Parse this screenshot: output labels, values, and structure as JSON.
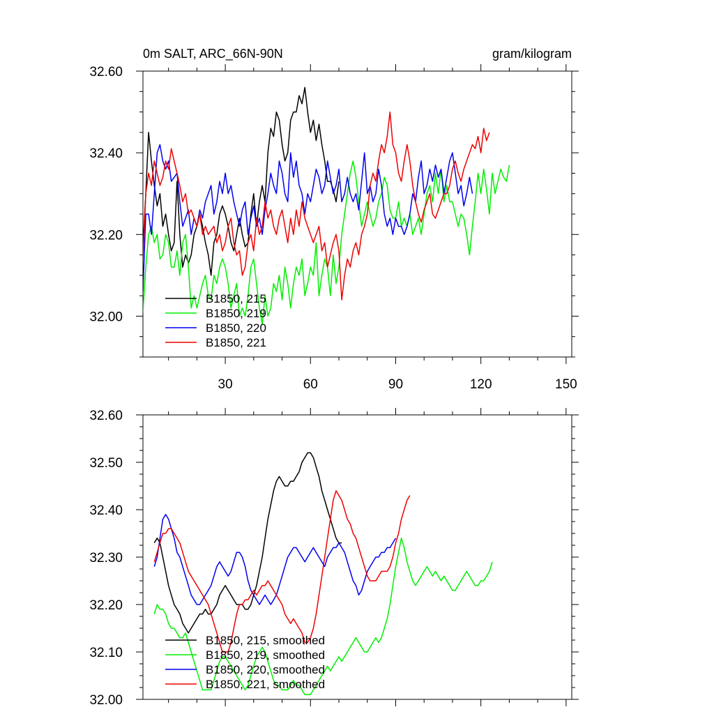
{
  "figure": {
    "title_left": "0m SALT, ARC_66N-90N",
    "title_right": "gram/kilogram"
  },
  "chart_data": [
    {
      "type": "line",
      "title": "0m SALT, ARC_66N-90N",
      "units": "gram/kilogram",
      "xlim": [
        1,
        152
      ],
      "ylim": [
        31.9,
        32.6
      ],
      "xticks": [
        30,
        60,
        90,
        120,
        150
      ],
      "xtick_labels": [
        "30",
        "60",
        "90",
        "120",
        "150"
      ],
      "yticks": [
        32.0,
        32.2,
        32.4,
        32.6
      ],
      "ytick_labels": [
        "32.00",
        "32.20",
        "32.40",
        "32.60"
      ],
      "legend": [
        "B1850, 215",
        "B1850, 219",
        "B1850, 220",
        "B1850, 221"
      ],
      "series": [
        {
          "name": "B1850, 215",
          "color": "#000000",
          "x0": 1,
          "values": [
            32.17,
            32.3,
            32.45,
            32.38,
            32.32,
            32.27,
            32.3,
            32.22,
            32.25,
            32.2,
            32.16,
            32.18,
            32.33,
            32.2,
            32.12,
            32.15,
            32.13,
            32.15,
            32.2,
            32.22,
            32.25,
            32.22,
            32.18,
            32.15,
            32.1,
            32.18,
            32.2,
            32.25,
            32.27,
            32.25,
            32.22,
            32.18,
            32.16,
            32.2,
            32.24,
            32.2,
            32.17,
            32.18,
            32.25,
            32.3,
            32.22,
            32.28,
            32.32,
            32.28,
            32.4,
            32.46,
            32.44,
            32.5,
            32.48,
            32.42,
            32.38,
            32.4,
            32.48,
            32.5,
            32.5,
            32.54,
            32.52,
            32.56,
            32.5,
            32.45,
            32.48,
            32.43,
            32.47,
            32.42,
            32.38,
            32.33,
            32.33,
            32.31,
            32.28,
            32.33
          ]
        },
        {
          "name": "B1850, 219",
          "color": "#00ee00",
          "x0": 1,
          "values": [
            32.01,
            32.12,
            32.2,
            32.22,
            32.18,
            32.2,
            32.14,
            32.15,
            32.2,
            32.18,
            32.12,
            32.12,
            32.16,
            32.1,
            32.18,
            32.2,
            32.12,
            32.02,
            32.05,
            32.02,
            32.05,
            32.08,
            32.1,
            32.05,
            32.04,
            32.1,
            32.08,
            32.12,
            32.14,
            32.12,
            32.08,
            32.02,
            32.05,
            32.08,
            32.0,
            32.02,
            32.0,
            32.05,
            32.12,
            32.14,
            32.08,
            32.02,
            31.98,
            32.05,
            32.0,
            32.02,
            32.08,
            32.06,
            32.1,
            32.04,
            32.12,
            32.08,
            32.02,
            32.08,
            32.12,
            32.1,
            32.14,
            32.05,
            32.08,
            32.12,
            32.1,
            32.18,
            32.05,
            32.1,
            32.14,
            32.12,
            32.05,
            32.15,
            32.08,
            32.12,
            32.2,
            32.25,
            32.3,
            32.35,
            32.38,
            32.34,
            32.28,
            32.22,
            32.25,
            32.28,
            32.25,
            32.22,
            32.24,
            32.28,
            32.3,
            32.34,
            32.32,
            32.26,
            32.24,
            32.24,
            32.28,
            32.22,
            32.24,
            32.22,
            32.25,
            32.2,
            32.22,
            32.24,
            32.2,
            32.25,
            32.3,
            32.32,
            32.28,
            32.35,
            32.3,
            32.36,
            32.28,
            32.32,
            32.28,
            32.28,
            32.25,
            32.22,
            32.25,
            32.24,
            32.2,
            32.15,
            32.22,
            32.28,
            32.35,
            32.3,
            32.36,
            32.31,
            32.25,
            32.35,
            32.3,
            32.33,
            32.36,
            32.34,
            32.33,
            32.37
          ]
        },
        {
          "name": "B1850, 220",
          "color": "#0000ee",
          "x0": 1,
          "values": [
            32.06,
            32.25,
            32.25,
            32.2,
            32.3,
            32.4,
            32.42,
            32.38,
            32.36,
            32.38,
            32.33,
            32.34,
            32.35,
            32.28,
            32.22,
            32.24,
            32.26,
            32.2,
            32.24,
            32.22,
            32.26,
            32.24,
            32.28,
            32.3,
            32.32,
            32.25,
            32.28,
            32.33,
            32.3,
            32.35,
            32.3,
            32.32,
            32.28,
            32.25,
            32.22,
            32.26,
            32.28,
            32.2,
            32.24,
            32.27,
            32.22,
            32.24,
            32.2,
            32.26,
            32.3,
            32.35,
            32.32,
            32.3,
            32.38,
            32.35,
            32.3,
            32.28,
            32.4,
            32.34,
            32.38,
            32.32,
            32.3,
            32.25,
            32.3,
            32.28,
            32.32,
            32.36,
            32.34,
            32.3,
            32.32,
            32.38,
            32.34,
            32.3,
            32.32,
            32.36,
            32.28,
            32.3,
            32.34,
            32.3,
            32.28,
            32.3,
            32.26,
            32.33,
            32.4,
            32.3,
            32.32,
            32.28,
            32.3,
            32.36,
            32.32,
            32.25,
            32.22,
            32.24,
            32.2,
            32.24,
            32.22,
            32.22,
            32.2,
            32.22,
            32.25,
            32.3,
            32.28,
            32.34,
            32.38,
            32.3,
            32.32,
            32.36,
            32.33,
            32.37,
            32.34,
            32.36,
            32.3,
            32.34,
            32.38,
            32.4,
            32.35,
            32.3,
            32.32,
            32.27,
            32.3,
            32.34,
            32.3
          ]
        },
        {
          "name": "B1850, 221",
          "color": "#ee0000",
          "x0": 1,
          "values": [
            32.14,
            32.3,
            32.35,
            32.32,
            32.38,
            32.35,
            32.32,
            32.34,
            32.38,
            32.36,
            32.41,
            32.38,
            32.35,
            32.32,
            32.28,
            32.3,
            32.25,
            32.26,
            32.24,
            32.22,
            32.25,
            32.2,
            32.22,
            32.2,
            32.21,
            32.22,
            32.18,
            32.2,
            32.16,
            32.18,
            32.22,
            32.24,
            32.18,
            32.15,
            32.16,
            32.1,
            32.12,
            32.18,
            32.2,
            32.16,
            32.24,
            32.2,
            32.22,
            32.28,
            32.24,
            32.26,
            32.22,
            32.2,
            32.24,
            32.26,
            32.22,
            32.18,
            32.24,
            32.2,
            32.26,
            32.22,
            32.28,
            32.24,
            32.22,
            32.2,
            32.18,
            32.2,
            32.22,
            32.16,
            32.18,
            32.12,
            32.15,
            32.18,
            32.2,
            32.16,
            32.04,
            32.1,
            32.14,
            32.12,
            32.16,
            32.18,
            32.15,
            32.2,
            32.22,
            32.25,
            32.32,
            32.35,
            32.33,
            32.38,
            32.42,
            32.4,
            32.44,
            32.5,
            32.42,
            32.4,
            32.35,
            32.33,
            32.38,
            32.42,
            32.38,
            32.32,
            32.28,
            32.25,
            32.23,
            32.26,
            32.28,
            32.3,
            32.25,
            32.24,
            32.26,
            32.28,
            32.3,
            32.3,
            32.32,
            32.36,
            32.38,
            32.35,
            32.33,
            32.36,
            32.38,
            32.4,
            32.42,
            32.41,
            32.44,
            32.4,
            32.46,
            32.43,
            32.45
          ]
        }
      ]
    },
    {
      "type": "line",
      "title": "",
      "xlim": [
        1,
        152
      ],
      "ylim": [
        32.0,
        32.6
      ],
      "xticks": [
        30,
        60,
        90,
        120,
        150
      ],
      "yticks": [
        32.0,
        32.1,
        32.2,
        32.3,
        32.4,
        32.5,
        32.6
      ],
      "ytick_labels": [
        "32.00",
        "32.10",
        "32.20",
        "32.30",
        "32.40",
        "32.50",
        "32.60"
      ],
      "legend": [
        "B1850, 215, smoothed",
        "B1850, 219, smoothed",
        "B1850, 220, smoothed",
        "B1850, 221, smoothed"
      ],
      "series": [
        {
          "name": "B1850, 215, smoothed",
          "color": "#000000",
          "x0": 5,
          "values": [
            32.33,
            32.34,
            32.33,
            32.3,
            32.27,
            32.24,
            32.22,
            32.2,
            32.19,
            32.18,
            32.16,
            32.15,
            32.14,
            32.15,
            32.16,
            32.17,
            32.18,
            32.18,
            32.19,
            32.18,
            32.18,
            32.19,
            32.2,
            32.22,
            32.23,
            32.24,
            32.23,
            32.22,
            32.21,
            32.2,
            32.2,
            32.2,
            32.19,
            32.19,
            32.2,
            32.22,
            32.24,
            32.27,
            32.3,
            32.34,
            32.38,
            32.41,
            32.44,
            32.46,
            32.47,
            32.46,
            32.45,
            32.45,
            32.46,
            32.46,
            32.47,
            32.48,
            32.5,
            32.51,
            32.52,
            32.52,
            32.51,
            32.49,
            32.47,
            32.44,
            32.42,
            32.4,
            32.38,
            32.36,
            32.34,
            32.33,
            32.33
          ]
        },
        {
          "name": "B1850, 219, smoothed",
          "color": "#00ee00",
          "x0": 5,
          "values": [
            32.18,
            32.2,
            32.19,
            32.19,
            32.18,
            32.16,
            32.15,
            32.15,
            32.14,
            32.13,
            32.13,
            32.14,
            32.12,
            32.1,
            32.08,
            32.06,
            32.04,
            32.02,
            32.02,
            32.02,
            32.02,
            32.04,
            32.06,
            32.08,
            32.09,
            32.09,
            32.08,
            32.07,
            32.06,
            32.05,
            32.04,
            32.03,
            32.02,
            32.03,
            32.05,
            32.07,
            32.09,
            32.1,
            32.11,
            32.1,
            32.08,
            32.06,
            32.04,
            32.03,
            32.03,
            32.02,
            32.02,
            32.02,
            32.03,
            32.04,
            32.03,
            32.03,
            32.02,
            32.01,
            32.01,
            32.01,
            32.02,
            32.03,
            32.04,
            32.05,
            32.06,
            32.07,
            32.06,
            32.07,
            32.08,
            32.09,
            32.08,
            32.09,
            32.1,
            32.11,
            32.12,
            32.13,
            32.12,
            32.11,
            32.1,
            32.1,
            32.11,
            32.12,
            32.13,
            32.12,
            32.13,
            32.15,
            32.17,
            32.2,
            32.24,
            32.28,
            32.31,
            32.34,
            32.32,
            32.29,
            32.27,
            32.25,
            32.24,
            32.25,
            32.26,
            32.27,
            32.28,
            32.27,
            32.26,
            32.27,
            32.26,
            32.25,
            32.26,
            32.25,
            32.24,
            32.23,
            32.23,
            32.24,
            32.25,
            32.26,
            32.27,
            32.26,
            32.25,
            32.24,
            32.24,
            32.25,
            32.25,
            32.26,
            32.27,
            32.29
          ]
        },
        {
          "name": "B1850, 220, smoothed",
          "color": "#0000ee",
          "x0": 5,
          "values": [
            32.28,
            32.3,
            32.34,
            32.38,
            32.39,
            32.38,
            32.36,
            32.34,
            32.31,
            32.3,
            32.28,
            32.26,
            32.24,
            32.22,
            32.21,
            32.2,
            32.2,
            32.21,
            32.22,
            32.23,
            32.24,
            32.26,
            32.28,
            32.29,
            32.28,
            32.27,
            32.26,
            32.27,
            32.29,
            32.31,
            32.31,
            32.3,
            32.28,
            32.25,
            32.23,
            32.22,
            32.21,
            32.2,
            32.21,
            32.22,
            32.21,
            32.2,
            32.21,
            32.22,
            32.24,
            32.26,
            32.28,
            32.3,
            32.31,
            32.32,
            32.32,
            32.31,
            32.3,
            32.29,
            32.3,
            32.31,
            32.32,
            32.31,
            32.3,
            32.29,
            32.28,
            32.3,
            32.31,
            32.32,
            32.32,
            32.33,
            32.32,
            32.31,
            32.29,
            32.27,
            32.25,
            32.24,
            32.22,
            32.23,
            32.25,
            32.27,
            32.28,
            32.29,
            32.3,
            32.3,
            32.31,
            32.31,
            32.32,
            32.32,
            32.33,
            32.34
          ]
        },
        {
          "name": "B1850, 221, smoothed",
          "color": "#ee0000",
          "x0": 5,
          "values": [
            32.29,
            32.31,
            32.33,
            32.35,
            32.35,
            32.36,
            32.36,
            32.35,
            32.34,
            32.33,
            32.31,
            32.29,
            32.27,
            32.26,
            32.25,
            32.24,
            32.23,
            32.22,
            32.21,
            32.2,
            32.18,
            32.16,
            32.14,
            32.12,
            32.1,
            32.1,
            32.1,
            32.12,
            32.15,
            32.18,
            32.2,
            32.2,
            32.21,
            32.21,
            32.22,
            32.23,
            32.22,
            32.23,
            32.24,
            32.24,
            32.25,
            32.24,
            32.23,
            32.22,
            32.21,
            32.2,
            32.18,
            32.17,
            32.16,
            32.17,
            32.16,
            32.15,
            32.14,
            32.12,
            32.12,
            32.13,
            32.15,
            32.18,
            32.22,
            32.26,
            32.3,
            32.34,
            32.38,
            32.42,
            32.44,
            32.43,
            32.42,
            32.4,
            32.38,
            32.37,
            32.35,
            32.34,
            32.32,
            32.3,
            32.28,
            32.26,
            32.25,
            32.25,
            32.25,
            32.26,
            32.27,
            32.27,
            32.27,
            32.28,
            32.3,
            32.33,
            32.35,
            32.38,
            32.4,
            32.42,
            32.43
          ]
        }
      ]
    }
  ]
}
